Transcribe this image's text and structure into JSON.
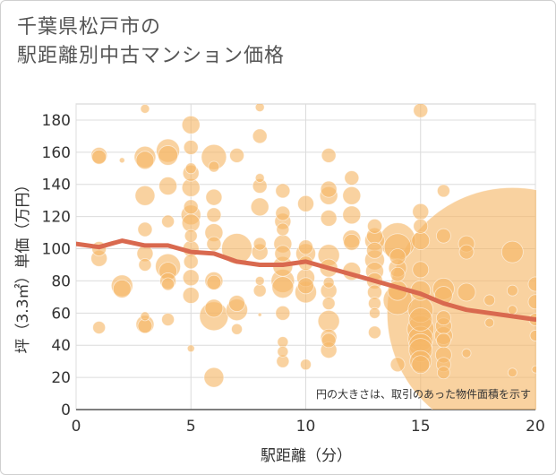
{
  "title_line1": "千葉県松戸市の",
  "title_line2": "駅距離別中古マンション価格",
  "note": "円の大きさは、取引のあった物件面積を示す",
  "chart_data": {
    "type": "scatter",
    "xlabel": "駅距離（分）",
    "ylabel": "坪（3.3㎡）単価（万円）",
    "xlim": [
      0,
      20
    ],
    "ylim": [
      0,
      190
    ],
    "xticks": [
      0,
      5,
      10,
      15,
      20
    ],
    "yticks": [
      0,
      20,
      40,
      60,
      80,
      100,
      120,
      140,
      160,
      180
    ],
    "grid": true,
    "bubble_color": "#f5b766",
    "line_color": "#d9694f",
    "trend_line": [
      {
        "x": 0,
        "y": 103
      },
      {
        "x": 1,
        "y": 101
      },
      {
        "x": 2,
        "y": 105
      },
      {
        "x": 3,
        "y": 102
      },
      {
        "x": 4,
        "y": 102
      },
      {
        "x": 5,
        "y": 98
      },
      {
        "x": 6,
        "y": 97
      },
      {
        "x": 7,
        "y": 92
      },
      {
        "x": 8,
        "y": 90
      },
      {
        "x": 9,
        "y": 90
      },
      {
        "x": 10,
        "y": 92
      },
      {
        "x": 11,
        "y": 88
      },
      {
        "x": 12,
        "y": 84
      },
      {
        "x": 13,
        "y": 80
      },
      {
        "x": 14,
        "y": 76
      },
      {
        "x": 15,
        "y": 72
      },
      {
        "x": 16,
        "y": 66
      },
      {
        "x": 17,
        "y": 62
      },
      {
        "x": 18,
        "y": 60
      },
      {
        "x": 19,
        "y": 58
      },
      {
        "x": 20,
        "y": 56
      }
    ],
    "points": [
      {
        "x": 1,
        "y": 158,
        "s": 9
      },
      {
        "x": 1,
        "y": 157,
        "s": 8
      },
      {
        "x": 1,
        "y": 100,
        "s": 8
      },
      {
        "x": 1,
        "y": 94,
        "s": 9
      },
      {
        "x": 1,
        "y": 51,
        "s": 7
      },
      {
        "x": 2,
        "y": 155,
        "s": 3
      },
      {
        "x": 2,
        "y": 77,
        "s": 12
      },
      {
        "x": 2,
        "y": 75,
        "s": 10
      },
      {
        "x": 3,
        "y": 187,
        "s": 5
      },
      {
        "x": 3,
        "y": 157,
        "s": 12
      },
      {
        "x": 3,
        "y": 155,
        "s": 10
      },
      {
        "x": 3,
        "y": 133,
        "s": 11
      },
      {
        "x": 3,
        "y": 112,
        "s": 8
      },
      {
        "x": 3,
        "y": 97,
        "s": 9
      },
      {
        "x": 3,
        "y": 90,
        "s": 7
      },
      {
        "x": 3,
        "y": 58,
        "s": 5
      },
      {
        "x": 3,
        "y": 53,
        "s": 10
      },
      {
        "x": 3,
        "y": 52,
        "s": 8
      },
      {
        "x": 4,
        "y": 161,
        "s": 13
      },
      {
        "x": 4,
        "y": 158,
        "s": 11
      },
      {
        "x": 4,
        "y": 139,
        "s": 10
      },
      {
        "x": 4,
        "y": 117,
        "s": 7
      },
      {
        "x": 4,
        "y": 89,
        "s": 14
      },
      {
        "x": 4,
        "y": 86,
        "s": 10
      },
      {
        "x": 4,
        "y": 80,
        "s": 9
      },
      {
        "x": 4,
        "y": 78,
        "s": 7
      },
      {
        "x": 4,
        "y": 56,
        "s": 7
      },
      {
        "x": 5,
        "y": 177,
        "s": 10
      },
      {
        "x": 5,
        "y": 163,
        "s": 8
      },
      {
        "x": 5,
        "y": 150,
        "s": 6
      },
      {
        "x": 5,
        "y": 147,
        "s": 9
      },
      {
        "x": 5,
        "y": 138,
        "s": 10
      },
      {
        "x": 5,
        "y": 126,
        "s": 8
      },
      {
        "x": 5,
        "y": 121,
        "s": 11
      },
      {
        "x": 5,
        "y": 116,
        "s": 10
      },
      {
        "x": 5,
        "y": 108,
        "s": 7
      },
      {
        "x": 5,
        "y": 100,
        "s": 9
      },
      {
        "x": 5,
        "y": 92,
        "s": 8
      },
      {
        "x": 5,
        "y": 82,
        "s": 9
      },
      {
        "x": 5,
        "y": 71,
        "s": 9
      },
      {
        "x": 5,
        "y": 38,
        "s": 4
      },
      {
        "x": 6,
        "y": 157,
        "s": 14
      },
      {
        "x": 6,
        "y": 151,
        "s": 6
      },
      {
        "x": 6,
        "y": 132,
        "s": 9
      },
      {
        "x": 6,
        "y": 121,
        "s": 8
      },
      {
        "x": 6,
        "y": 110,
        "s": 10
      },
      {
        "x": 6,
        "y": 103,
        "s": 8
      },
      {
        "x": 6,
        "y": 80,
        "s": 10
      },
      {
        "x": 6,
        "y": 79,
        "s": 8
      },
      {
        "x": 6,
        "y": 63,
        "s": 10
      },
      {
        "x": 6,
        "y": 58,
        "s": 16
      },
      {
        "x": 6,
        "y": 20,
        "s": 11
      },
      {
        "x": 7,
        "y": 158,
        "s": 8
      },
      {
        "x": 7,
        "y": 100,
        "s": 17
      },
      {
        "x": 7,
        "y": 66,
        "s": 9
      },
      {
        "x": 7,
        "y": 62,
        "s": 12
      },
      {
        "x": 7,
        "y": 50,
        "s": 6
      },
      {
        "x": 8,
        "y": 188,
        "s": 5
      },
      {
        "x": 8,
        "y": 170,
        "s": 8
      },
      {
        "x": 8,
        "y": 144,
        "s": 5
      },
      {
        "x": 8,
        "y": 139,
        "s": 8
      },
      {
        "x": 8,
        "y": 126,
        "s": 10
      },
      {
        "x": 8,
        "y": 103,
        "s": 7
      },
      {
        "x": 8,
        "y": 98,
        "s": 9
      },
      {
        "x": 8,
        "y": 80,
        "s": 5
      },
      {
        "x": 8,
        "y": 74,
        "s": 7
      },
      {
        "x": 8,
        "y": 59,
        "s": 2
      },
      {
        "x": 9,
        "y": 136,
        "s": 8
      },
      {
        "x": 9,
        "y": 122,
        "s": 8
      },
      {
        "x": 9,
        "y": 117,
        "s": 9
      },
      {
        "x": 9,
        "y": 112,
        "s": 7
      },
      {
        "x": 9,
        "y": 103,
        "s": 10
      },
      {
        "x": 9,
        "y": 97,
        "s": 9
      },
      {
        "x": 9,
        "y": 89,
        "s": 11
      },
      {
        "x": 9,
        "y": 80,
        "s": 13
      },
      {
        "x": 9,
        "y": 76,
        "s": 12
      },
      {
        "x": 9,
        "y": 60,
        "s": 8
      },
      {
        "x": 9,
        "y": 42,
        "s": 6
      },
      {
        "x": 9,
        "y": 36,
        "s": 6
      },
      {
        "x": 9,
        "y": 30,
        "s": 7
      },
      {
        "x": 10,
        "y": 128,
        "s": 9
      },
      {
        "x": 10,
        "y": 101,
        "s": 8
      },
      {
        "x": 10,
        "y": 97,
        "s": 11
      },
      {
        "x": 10,
        "y": 91,
        "s": 8
      },
      {
        "x": 10,
        "y": 82,
        "s": 10
      },
      {
        "x": 10,
        "y": 77,
        "s": 9
      },
      {
        "x": 10,
        "y": 73,
        "s": 12
      },
      {
        "x": 10,
        "y": 28,
        "s": 6
      },
      {
        "x": 11,
        "y": 158,
        "s": 8
      },
      {
        "x": 11,
        "y": 137,
        "s": 9
      },
      {
        "x": 11,
        "y": 133,
        "s": 10
      },
      {
        "x": 11,
        "y": 119,
        "s": 9
      },
      {
        "x": 11,
        "y": 96,
        "s": 12
      },
      {
        "x": 11,
        "y": 88,
        "s": 10
      },
      {
        "x": 11,
        "y": 79,
        "s": 6
      },
      {
        "x": 11,
        "y": 74,
        "s": 9
      },
      {
        "x": 11,
        "y": 66,
        "s": 7
      },
      {
        "x": 11,
        "y": 55,
        "s": 12
      },
      {
        "x": 11,
        "y": 45,
        "s": 9
      },
      {
        "x": 11,
        "y": 43,
        "s": 8
      },
      {
        "x": 11,
        "y": 37,
        "s": 9
      },
      {
        "x": 12,
        "y": 144,
        "s": 8
      },
      {
        "x": 12,
        "y": 133,
        "s": 10
      },
      {
        "x": 12,
        "y": 121,
        "s": 10
      },
      {
        "x": 12,
        "y": 106,
        "s": 10
      },
      {
        "x": 12,
        "y": 104,
        "s": 9
      },
      {
        "x": 12,
        "y": 86,
        "s": 10
      },
      {
        "x": 13,
        "y": 114,
        "s": 8
      },
      {
        "x": 13,
        "y": 108,
        "s": 9
      },
      {
        "x": 13,
        "y": 105,
        "s": 11
      },
      {
        "x": 13,
        "y": 99,
        "s": 9
      },
      {
        "x": 13,
        "y": 93,
        "s": 11
      },
      {
        "x": 13,
        "y": 86,
        "s": 10
      },
      {
        "x": 13,
        "y": 80,
        "s": 9
      },
      {
        "x": 13,
        "y": 73,
        "s": 8
      },
      {
        "x": 13,
        "y": 66,
        "s": 7
      },
      {
        "x": 13,
        "y": 60,
        "s": 6
      },
      {
        "x": 13,
        "y": 48,
        "s": 7
      },
      {
        "x": 14,
        "y": 105,
        "s": 20
      },
      {
        "x": 14,
        "y": 101,
        "s": 15
      },
      {
        "x": 14,
        "y": 95,
        "s": 9
      },
      {
        "x": 14,
        "y": 88,
        "s": 10
      },
      {
        "x": 14,
        "y": 84,
        "s": 8
      },
      {
        "x": 14,
        "y": 74,
        "s": 11
      },
      {
        "x": 14,
        "y": 68,
        "s": 16
      },
      {
        "x": 14,
        "y": 28,
        "s": 8
      },
      {
        "x": 15,
        "y": 186,
        "s": 8
      },
      {
        "x": 15,
        "y": 123,
        "s": 9
      },
      {
        "x": 15,
        "y": 114,
        "s": 8
      },
      {
        "x": 15,
        "y": 105,
        "s": 10
      },
      {
        "x": 15,
        "y": 87,
        "s": 9
      },
      {
        "x": 15,
        "y": 74,
        "s": 11
      },
      {
        "x": 15,
        "y": 62,
        "s": 14
      },
      {
        "x": 15,
        "y": 56,
        "s": 13
      },
      {
        "x": 15,
        "y": 50,
        "s": 15
      },
      {
        "x": 15,
        "y": 44,
        "s": 14
      },
      {
        "x": 15,
        "y": 40,
        "s": 13
      },
      {
        "x": 15,
        "y": 37,
        "s": 13
      },
      {
        "x": 15,
        "y": 30,
        "s": 12
      },
      {
        "x": 15,
        "y": 28,
        "s": 10
      },
      {
        "x": 16,
        "y": 136,
        "s": 7
      },
      {
        "x": 16,
        "y": 108,
        "s": 8
      },
      {
        "x": 16,
        "y": 75,
        "s": 12
      },
      {
        "x": 16,
        "y": 71,
        "s": 10
      },
      {
        "x": 16,
        "y": 57,
        "s": 8
      },
      {
        "x": 16,
        "y": 52,
        "s": 9
      },
      {
        "x": 16,
        "y": 46,
        "s": 10
      },
      {
        "x": 16,
        "y": 43,
        "s": 8
      },
      {
        "x": 16,
        "y": 34,
        "s": 9
      },
      {
        "x": 16,
        "y": 28,
        "s": 8
      },
      {
        "x": 16,
        "y": 23,
        "s": 7
      },
      {
        "x": 17,
        "y": 103,
        "s": 9
      },
      {
        "x": 17,
        "y": 98,
        "s": 8
      },
      {
        "x": 17,
        "y": 73,
        "s": 10
      },
      {
        "x": 17,
        "y": 35,
        "s": 5
      },
      {
        "x": 18,
        "y": 68,
        "s": 6
      },
      {
        "x": 18,
        "y": 54,
        "s": 5
      },
      {
        "x": 19,
        "y": 98,
        "s": 12
      },
      {
        "x": 19,
        "y": 74,
        "s": 6
      },
      {
        "x": 19,
        "y": 62,
        "s": 5
      },
      {
        "x": 19,
        "y": 23,
        "s": 5
      },
      {
        "x": 19,
        "y": 60,
        "s": 140
      },
      {
        "x": 20,
        "y": 78,
        "s": 8
      },
      {
        "x": 20,
        "y": 67,
        "s": 8
      },
      {
        "x": 20,
        "y": 56,
        "s": 7
      },
      {
        "x": 20,
        "y": 46,
        "s": 6
      },
      {
        "x": 20,
        "y": 25,
        "s": 4
      }
    ]
  }
}
